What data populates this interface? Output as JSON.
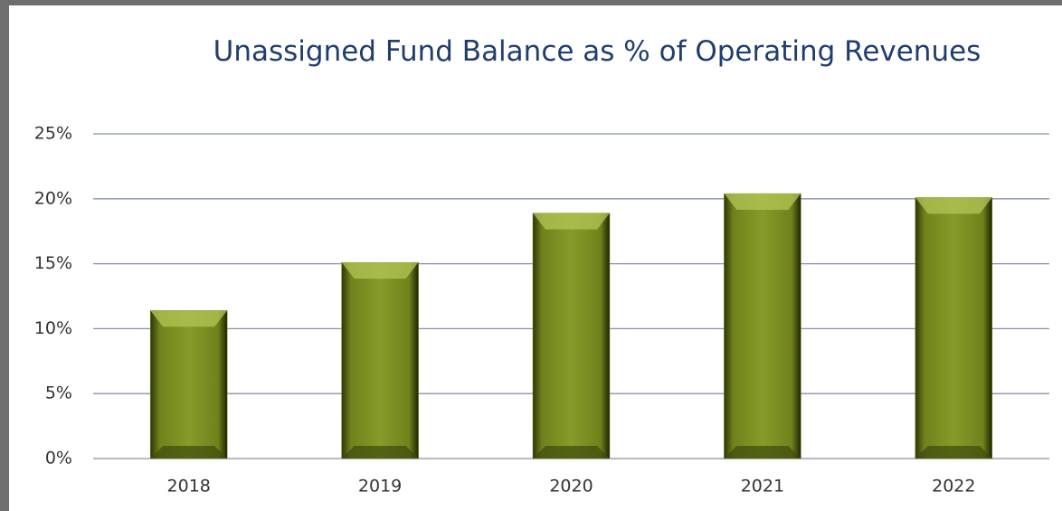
{
  "chart_data": {
    "type": "bar",
    "title": "Unassigned Fund Balance as % of Operating Revenues",
    "categories": [
      "2018",
      "2019",
      "2020",
      "2021",
      "2022"
    ],
    "values": [
      11.4,
      15.1,
      18.9,
      20.4,
      20.1
    ],
    "color": "#7b8f22",
    "ylim": [
      0,
      25
    ],
    "yticks": [
      {
        "value": 0,
        "label": "0%"
      },
      {
        "value": 5,
        "label": "5%"
      },
      {
        "value": 10,
        "label": "10%"
      },
      {
        "value": 15,
        "label": "15%"
      },
      {
        "value": 20,
        "label": "20%"
      },
      {
        "value": 25,
        "label": "25%"
      }
    ],
    "grid": true
  }
}
